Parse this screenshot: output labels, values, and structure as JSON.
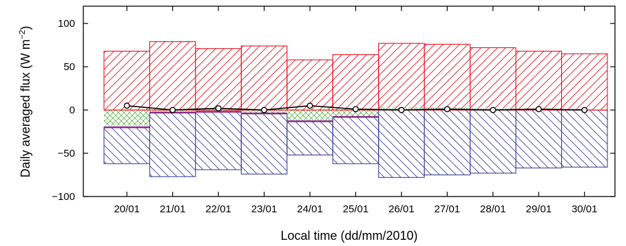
{
  "chart_data": {
    "type": "bar",
    "title": "",
    "xlabel": "Local time (dd/mm/2010)",
    "ylabel_prefix": "Daily averaged flux (W m",
    "ylabel_exponent": "−2",
    "ylabel_suffix": ")",
    "ylim": [
      -100,
      120
    ],
    "yticks": [
      {
        "value": 100,
        "label": "100"
      },
      {
        "value": 50,
        "label": "50"
      },
      {
        "value": 0,
        "label": "0"
      },
      {
        "value": -50,
        "label": "−50"
      },
      {
        "value": -100,
        "label": "−100"
      }
    ],
    "categories": [
      "20/01",
      "21/01",
      "22/01",
      "23/01",
      "24/01",
      "25/01",
      "26/01",
      "27/01",
      "28/01",
      "29/01",
      "30/01"
    ],
    "grid": false,
    "legend": "none",
    "colors": {
      "red": "#e8101a",
      "green": "#5ab54a",
      "blue": "#3a3f99",
      "purple": "#8a2a8a",
      "line": "#000000"
    },
    "series": [
      {
        "values": [
          68,
          79,
          71,
          74,
          58,
          64,
          77,
          76,
          72,
          68,
          65
        ],
        "color": "#e8101a",
        "pattern": "diagonal-up"
      },
      {
        "values": [
          -18,
          -2,
          -1,
          -3,
          -12,
          -7,
          3,
          3,
          2,
          1,
          0
        ],
        "color": "#5ab54a",
        "pattern": "crosshatch"
      },
      {
        "values": [
          -20,
          -3,
          -2,
          -4,
          -13,
          -8,
          0,
          0,
          0,
          0,
          0
        ],
        "color": "#8a2a8a",
        "pattern": "line"
      },
      {
        "values": [
          -62,
          -77,
          -69,
          -74,
          -52,
          -62,
          -78,
          -75,
          -73,
          -67,
          -66
        ],
        "color": "#3a3f99",
        "pattern": "diagonal-down"
      },
      {
        "values": [
          5,
          0,
          2,
          0,
          5,
          1,
          0,
          1,
          0,
          1,
          0
        ],
        "color": "#000000",
        "type": "line-markers"
      }
    ]
  }
}
